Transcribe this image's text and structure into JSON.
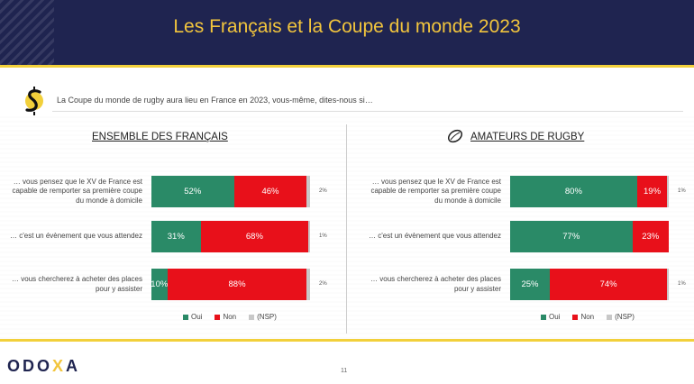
{
  "header": {
    "title": "Les Français et la Coupe du monde 2023"
  },
  "question": "La Coupe du monde de rugby aura lieu en France en 2023, vous-même, dites-nous si…",
  "colors": {
    "oui": "#2a8a67",
    "non": "#e8101a",
    "nsp": "#c8c8c8",
    "navy": "#1f2450",
    "gold": "#f2c53d"
  },
  "legend": {
    "oui": "Oui",
    "non": "Non",
    "nsp": "(NSP)"
  },
  "footer": {
    "brand_prefix": "ODO",
    "brand_x": "X",
    "brand_suffix": "A",
    "page": "11"
  },
  "panels": [
    {
      "title": "ENSEMBLE DES FRANÇAIS"
    },
    {
      "title": "AMATEURS DE RUGBY"
    }
  ],
  "chart_data": [
    {
      "type": "bar",
      "orientation": "horizontal-stacked",
      "title": "ENSEMBLE DES FRANÇAIS",
      "categories": [
        "… vous pensez que le XV de France est capable de remporter sa première coupe du monde à domicile",
        "… c'est un évènement que vous attendez",
        "… vous chercherez à acheter des places pour y assister"
      ],
      "category_lines": [
        [
          "… vous pensez que le XV de France est",
          "capable de remporter sa première coupe",
          "du monde à domicile"
        ],
        [
          "… c'est un évènement que vous attendez"
        ],
        [
          "… vous chercherez à acheter des places",
          "pour y assister"
        ]
      ],
      "series": [
        {
          "name": "Oui",
          "values": [
            52,
            31,
            10
          ],
          "labels": [
            "52%",
            "31%",
            "10%"
          ]
        },
        {
          "name": "Non",
          "values": [
            46,
            68,
            88
          ],
          "labels": [
            "46%",
            "68%",
            "88%"
          ]
        },
        {
          "name": "(NSP)",
          "values": [
            2,
            1,
            2
          ],
          "labels": [
            "2%",
            "1%",
            "2%"
          ]
        }
      ],
      "xlim": [
        0,
        100
      ]
    },
    {
      "type": "bar",
      "orientation": "horizontal-stacked",
      "title": "AMATEURS DE RUGBY",
      "categories": [
        "… vous pensez que le XV de France est capable de remporter sa première coupe du monde à domicile",
        "… c'est un évènement que vous attendez",
        "… vous chercherez à acheter des places pour y assister"
      ],
      "category_lines": [
        [
          "… vous pensez que le XV de France est",
          "capable de remporter sa première coupe",
          "du monde à domicile"
        ],
        [
          "… c'est un évènement que vous attendez"
        ],
        [
          "… vous chercherez à acheter des places",
          "pour y assister"
        ]
      ],
      "series": [
        {
          "name": "Oui",
          "values": [
            80,
            77,
            25
          ],
          "labels": [
            "80%",
            "77%",
            "25%"
          ]
        },
        {
          "name": "Non",
          "values": [
            19,
            23,
            74
          ],
          "labels": [
            "19%",
            "23%",
            "74%"
          ]
        },
        {
          "name": "(NSP)",
          "values": [
            1,
            0,
            1
          ],
          "labels": [
            "1%",
            "",
            "1%"
          ]
        }
      ],
      "xlim": [
        0,
        100
      ]
    }
  ]
}
